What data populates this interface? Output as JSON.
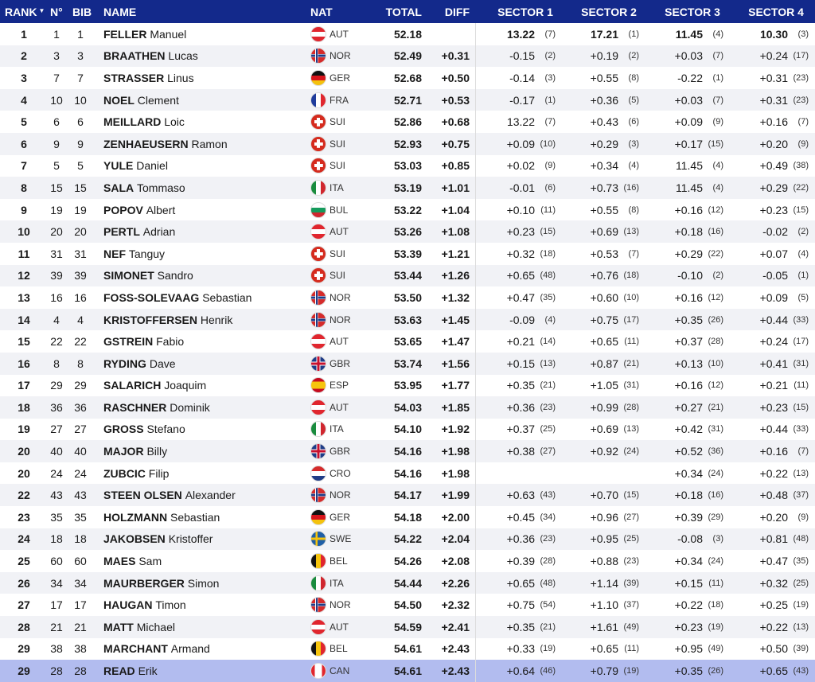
{
  "header": {
    "rank": "RANK",
    "rank_sort_icon": "sort-down-icon",
    "no": "N°",
    "bib": "BIB",
    "name": "NAME",
    "nat": "NAT",
    "total": "TOTAL",
    "diff": "DIFF",
    "s1": "SECTOR 1",
    "s2": "SECTOR 2",
    "s3": "SECTOR 3",
    "s4": "SECTOR 4"
  },
  "colors": {
    "header_bg": "#13298b",
    "row_alt": "#f1f2f6",
    "highlight": "#b2bcef"
  },
  "rows": [
    {
      "rank": "1",
      "no": "1",
      "bib": "1",
      "last": "FELLER",
      "first": "Manuel",
      "nat": "AUT",
      "total": "52.18",
      "diff": "",
      "s1": "13.22",
      "s1r": "(7)",
      "s2": "17.21",
      "s2r": "(1)",
      "s3": "11.45",
      "s3r": "(4)",
      "s4": "10.30",
      "s4r": "(3)"
    },
    {
      "rank": "2",
      "no": "3",
      "bib": "3",
      "last": "BRAATHEN",
      "first": "Lucas",
      "nat": "NOR",
      "total": "52.49",
      "diff": "+0.31",
      "s1": "-0.15",
      "s1r": "(2)",
      "s2": "+0.19",
      "s2r": "(2)",
      "s3": "+0.03",
      "s3r": "(7)",
      "s4": "+0.24",
      "s4r": "(17)"
    },
    {
      "rank": "3",
      "no": "7",
      "bib": "7",
      "last": "STRASSER",
      "first": "Linus",
      "nat": "GER",
      "total": "52.68",
      "diff": "+0.50",
      "s1": "-0.14",
      "s1r": "(3)",
      "s2": "+0.55",
      "s2r": "(8)",
      "s3": "-0.22",
      "s3r": "(1)",
      "s4": "+0.31",
      "s4r": "(23)"
    },
    {
      "rank": "4",
      "no": "10",
      "bib": "10",
      "last": "NOEL",
      "first": "Clement",
      "nat": "FRA",
      "total": "52.71",
      "diff": "+0.53",
      "s1": "-0.17",
      "s1r": "(1)",
      "s2": "+0.36",
      "s2r": "(5)",
      "s3": "+0.03",
      "s3r": "(7)",
      "s4": "+0.31",
      "s4r": "(23)"
    },
    {
      "rank": "5",
      "no": "6",
      "bib": "6",
      "last": "MEILLARD",
      "first": "Loic",
      "nat": "SUI",
      "total": "52.86",
      "diff": "+0.68",
      "s1": "13.22",
      "s1r": "(7)",
      "s2": "+0.43",
      "s2r": "(6)",
      "s3": "+0.09",
      "s3r": "(9)",
      "s4": "+0.16",
      "s4r": "(7)"
    },
    {
      "rank": "6",
      "no": "9",
      "bib": "9",
      "last": "ZENHAEUSERN",
      "first": "Ramon",
      "nat": "SUI",
      "total": "52.93",
      "diff": "+0.75",
      "s1": "+0.09",
      "s1r": "(10)",
      "s2": "+0.29",
      "s2r": "(3)",
      "s3": "+0.17",
      "s3r": "(15)",
      "s4": "+0.20",
      "s4r": "(9)"
    },
    {
      "rank": "7",
      "no": "5",
      "bib": "5",
      "last": "YULE",
      "first": "Daniel",
      "nat": "SUI",
      "total": "53.03",
      "diff": "+0.85",
      "s1": "+0.02",
      "s1r": "(9)",
      "s2": "+0.34",
      "s2r": "(4)",
      "s3": "11.45",
      "s3r": "(4)",
      "s4": "+0.49",
      "s4r": "(38)"
    },
    {
      "rank": "8",
      "no": "15",
      "bib": "15",
      "last": "SALA",
      "first": "Tommaso",
      "nat": "ITA",
      "total": "53.19",
      "diff": "+1.01",
      "s1": "-0.01",
      "s1r": "(6)",
      "s2": "+0.73",
      "s2r": "(16)",
      "s3": "11.45",
      "s3r": "(4)",
      "s4": "+0.29",
      "s4r": "(22)"
    },
    {
      "rank": "9",
      "no": "19",
      "bib": "19",
      "last": "POPOV",
      "first": "Albert",
      "nat": "BUL",
      "total": "53.22",
      "diff": "+1.04",
      "s1": "+0.10",
      "s1r": "(11)",
      "s2": "+0.55",
      "s2r": "(8)",
      "s3": "+0.16",
      "s3r": "(12)",
      "s4": "+0.23",
      "s4r": "(15)"
    },
    {
      "rank": "10",
      "no": "20",
      "bib": "20",
      "last": "PERTL",
      "first": "Adrian",
      "nat": "AUT",
      "total": "53.26",
      "diff": "+1.08",
      "s1": "+0.23",
      "s1r": "(15)",
      "s2": "+0.69",
      "s2r": "(13)",
      "s3": "+0.18",
      "s3r": "(16)",
      "s4": "-0.02",
      "s4r": "(2)"
    },
    {
      "rank": "11",
      "no": "31",
      "bib": "31",
      "last": "NEF",
      "first": "Tanguy",
      "nat": "SUI",
      "total": "53.39",
      "diff": "+1.21",
      "s1": "+0.32",
      "s1r": "(18)",
      "s2": "+0.53",
      "s2r": "(7)",
      "s3": "+0.29",
      "s3r": "(22)",
      "s4": "+0.07",
      "s4r": "(4)"
    },
    {
      "rank": "12",
      "no": "39",
      "bib": "39",
      "last": "SIMONET",
      "first": "Sandro",
      "nat": "SUI",
      "total": "53.44",
      "diff": "+1.26",
      "s1": "+0.65",
      "s1r": "(48)",
      "s2": "+0.76",
      "s2r": "(18)",
      "s3": "-0.10",
      "s3r": "(2)",
      "s4": "-0.05",
      "s4r": "(1)"
    },
    {
      "rank": "13",
      "no": "16",
      "bib": "16",
      "last": "FOSS-SOLEVAAG",
      "first": "Sebastian",
      "nat": "NOR",
      "total": "53.50",
      "diff": "+1.32",
      "s1": "+0.47",
      "s1r": "(35)",
      "s2": "+0.60",
      "s2r": "(10)",
      "s3": "+0.16",
      "s3r": "(12)",
      "s4": "+0.09",
      "s4r": "(5)"
    },
    {
      "rank": "14",
      "no": "4",
      "bib": "4",
      "last": "KRISTOFFERSEN",
      "first": "Henrik",
      "nat": "NOR",
      "total": "53.63",
      "diff": "+1.45",
      "s1": "-0.09",
      "s1r": "(4)",
      "s2": "+0.75",
      "s2r": "(17)",
      "s3": "+0.35",
      "s3r": "(26)",
      "s4": "+0.44",
      "s4r": "(33)"
    },
    {
      "rank": "15",
      "no": "22",
      "bib": "22",
      "last": "GSTREIN",
      "first": "Fabio",
      "nat": "AUT",
      "total": "53.65",
      "diff": "+1.47",
      "s1": "+0.21",
      "s1r": "(14)",
      "s2": "+0.65",
      "s2r": "(11)",
      "s3": "+0.37",
      "s3r": "(28)",
      "s4": "+0.24",
      "s4r": "(17)"
    },
    {
      "rank": "16",
      "no": "8",
      "bib": "8",
      "last": "RYDING",
      "first": "Dave",
      "nat": "GBR",
      "total": "53.74",
      "diff": "+1.56",
      "s1": "+0.15",
      "s1r": "(13)",
      "s2": "+0.87",
      "s2r": "(21)",
      "s3": "+0.13",
      "s3r": "(10)",
      "s4": "+0.41",
      "s4r": "(31)"
    },
    {
      "rank": "17",
      "no": "29",
      "bib": "29",
      "last": "SALARICH",
      "first": "Joaquim",
      "nat": "ESP",
      "total": "53.95",
      "diff": "+1.77",
      "s1": "+0.35",
      "s1r": "(21)",
      "s2": "+1.05",
      "s2r": "(31)",
      "s3": "+0.16",
      "s3r": "(12)",
      "s4": "+0.21",
      "s4r": "(11)"
    },
    {
      "rank": "18",
      "no": "36",
      "bib": "36",
      "last": "RASCHNER",
      "first": "Dominik",
      "nat": "AUT",
      "total": "54.03",
      "diff": "+1.85",
      "s1": "+0.36",
      "s1r": "(23)",
      "s2": "+0.99",
      "s2r": "(28)",
      "s3": "+0.27",
      "s3r": "(21)",
      "s4": "+0.23",
      "s4r": "(15)"
    },
    {
      "rank": "19",
      "no": "27",
      "bib": "27",
      "last": "GROSS",
      "first": "Stefano",
      "nat": "ITA",
      "total": "54.10",
      "diff": "+1.92",
      "s1": "+0.37",
      "s1r": "(25)",
      "s2": "+0.69",
      "s2r": "(13)",
      "s3": "+0.42",
      "s3r": "(31)",
      "s4": "+0.44",
      "s4r": "(33)"
    },
    {
      "rank": "20",
      "no": "40",
      "bib": "40",
      "last": "MAJOR",
      "first": "Billy",
      "nat": "GBR",
      "total": "54.16",
      "diff": "+1.98",
      "s1": "+0.38",
      "s1r": "(27)",
      "s2": "+0.92",
      "s2r": "(24)",
      "s3": "+0.52",
      "s3r": "(36)",
      "s4": "+0.16",
      "s4r": "(7)"
    },
    {
      "rank": "20",
      "no": "24",
      "bib": "24",
      "last": "ZUBCIC",
      "first": "Filip",
      "nat": "CRO",
      "total": "54.16",
      "diff": "+1.98",
      "s1": "",
      "s1r": "",
      "s2": "",
      "s2r": "",
      "s3": "+0.34",
      "s3r": "(24)",
      "s4": "+0.22",
      "s4r": "(13)"
    },
    {
      "rank": "22",
      "no": "43",
      "bib": "43",
      "last": "STEEN OLSEN",
      "first": "Alexander",
      "nat": "NOR",
      "total": "54.17",
      "diff": "+1.99",
      "s1": "+0.63",
      "s1r": "(43)",
      "s2": "+0.70",
      "s2r": "(15)",
      "s3": "+0.18",
      "s3r": "(16)",
      "s4": "+0.48",
      "s4r": "(37)"
    },
    {
      "rank": "23",
      "no": "35",
      "bib": "35",
      "last": "HOLZMANN",
      "first": "Sebastian",
      "nat": "GER",
      "total": "54.18",
      "diff": "+2.00",
      "s1": "+0.45",
      "s1r": "(34)",
      "s2": "+0.96",
      "s2r": "(27)",
      "s3": "+0.39",
      "s3r": "(29)",
      "s4": "+0.20",
      "s4r": "(9)"
    },
    {
      "rank": "24",
      "no": "18",
      "bib": "18",
      "last": "JAKOBSEN",
      "first": "Kristoffer",
      "nat": "SWE",
      "total": "54.22",
      "diff": "+2.04",
      "s1": "+0.36",
      "s1r": "(23)",
      "s2": "+0.95",
      "s2r": "(25)",
      "s3": "-0.08",
      "s3r": "(3)",
      "s4": "+0.81",
      "s4r": "(48)"
    },
    {
      "rank": "25",
      "no": "60",
      "bib": "60",
      "last": "MAES",
      "first": "Sam",
      "nat": "BEL",
      "total": "54.26",
      "diff": "+2.08",
      "s1": "+0.39",
      "s1r": "(28)",
      "s2": "+0.88",
      "s2r": "(23)",
      "s3": "+0.34",
      "s3r": "(24)",
      "s4": "+0.47",
      "s4r": "(35)"
    },
    {
      "rank": "26",
      "no": "34",
      "bib": "34",
      "last": "MAURBERGER",
      "first": "Simon",
      "nat": "ITA",
      "total": "54.44",
      "diff": "+2.26",
      "s1": "+0.65",
      "s1r": "(48)",
      "s2": "+1.14",
      "s2r": "(39)",
      "s3": "+0.15",
      "s3r": "(11)",
      "s4": "+0.32",
      "s4r": "(25)"
    },
    {
      "rank": "27",
      "no": "17",
      "bib": "17",
      "last": "HAUGAN",
      "first": "Timon",
      "nat": "NOR",
      "total": "54.50",
      "diff": "+2.32",
      "s1": "+0.75",
      "s1r": "(54)",
      "s2": "+1.10",
      "s2r": "(37)",
      "s3": "+0.22",
      "s3r": "(18)",
      "s4": "+0.25",
      "s4r": "(19)"
    },
    {
      "rank": "28",
      "no": "21",
      "bib": "21",
      "last": "MATT",
      "first": "Michael",
      "nat": "AUT",
      "total": "54.59",
      "diff": "+2.41",
      "s1": "+0.35",
      "s1r": "(21)",
      "s2": "+1.61",
      "s2r": "(49)",
      "s3": "+0.23",
      "s3r": "(19)",
      "s4": "+0.22",
      "s4r": "(13)"
    },
    {
      "rank": "29",
      "no": "38",
      "bib": "38",
      "last": "MARCHANT",
      "first": "Armand",
      "nat": "BEL",
      "total": "54.61",
      "diff": "+2.43",
      "s1": "+0.33",
      "s1r": "(19)",
      "s2": "+0.65",
      "s2r": "(11)",
      "s3": "+0.95",
      "s3r": "(49)",
      "s4": "+0.50",
      "s4r": "(39)"
    },
    {
      "rank": "29",
      "no": "28",
      "bib": "28",
      "last": "READ",
      "first": "Erik",
      "nat": "CAN",
      "total": "54.61",
      "diff": "+2.43",
      "s1": "+0.64",
      "s1r": "(46)",
      "s2": "+0.79",
      "s2r": "(19)",
      "s3": "+0.35",
      "s3r": "(26)",
      "s4": "+0.65",
      "s4r": "(43)",
      "highlighted": true
    }
  ]
}
